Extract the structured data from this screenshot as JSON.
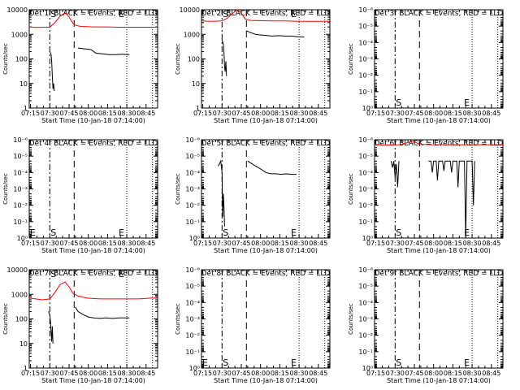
{
  "figure": {
    "title_template": "Det {n}f BLACK = Events, RED = LLD",
    "xlabel": "Start Time (10-Jan-18 07:14:00)",
    "ylabel": "Counts/sec",
    "x_tick_labels": [
      "07:15",
      "07:30",
      "07:45",
      "08:00",
      "08:15",
      "08:30",
      "08:45"
    ],
    "colors": {
      "events": "#000000",
      "lld": "#ff0000",
      "axes": "#000000",
      "background": "#ffffff"
    },
    "marker_labels": {
      "start": "S",
      "end": "E"
    }
  },
  "chart_data": [
    {
      "type": "line",
      "title": "Det 1f BLACK = Events, RED = LLD",
      "xlabel": "Start Time (10-Jan-18 07:14:00)",
      "ylabel": "Counts/sec",
      "x_unit": "minutes since 07:14:00",
      "x_range": [
        0,
        100
      ],
      "y_scale": "log",
      "ylim": [
        1,
        10000
      ],
      "y_tick_labels": [
        "1",
        "10",
        "100",
        "1000",
        "10000"
      ],
      "markers": {
        "S": 16,
        "E": 76
      },
      "vlines": {
        "dashdot": 16,
        "dashed": 35,
        "dotted": [
          76,
          96
        ]
      },
      "series": [
        {
          "name": "Events",
          "color": "#000000",
          "segments": [
            [
              [
                16,
                200
              ],
              [
                17,
                150
              ],
              [
                17.5,
                80
              ],
              [
                18,
                20
              ],
              [
                18.5,
                6
              ],
              [
                19,
                10
              ],
              [
                19.5,
                5
              ]
            ],
            [
              [
                38,
                280
              ],
              [
                40,
                270
              ],
              [
                45,
                250
              ],
              [
                48,
                240
              ],
              [
                52,
                170
              ],
              [
                57,
                160
              ],
              [
                62,
                150
              ],
              [
                67,
                150
              ],
              [
                72,
                155
              ],
              [
                78,
                148
              ]
            ]
          ]
        },
        {
          "name": "LLD",
          "color": "#ff0000",
          "segments": [
            [
              [
                0,
                2000
              ],
              [
                5,
                1900
              ],
              [
                12,
                1950
              ],
              [
                16,
                1950
              ],
              [
                20,
                3000
              ],
              [
                24,
                5500
              ],
              [
                28,
                7500
              ],
              [
                30,
                6000
              ],
              [
                33,
                3500
              ],
              [
                35,
                2400
              ],
              [
                40,
                2100
              ],
              [
                50,
                2000
              ],
              [
                60,
                2000
              ],
              [
                70,
                1950
              ],
              [
                80,
                1950
              ],
              [
                90,
                1950
              ],
              [
                100,
                1950
              ]
            ]
          ]
        }
      ]
    },
    {
      "type": "line",
      "title": "Det 2f BLACK = Events, RED = LLD",
      "xlabel": "Start Time (10-Jan-18 07:14:00)",
      "ylabel": "Counts/sec",
      "x_unit": "minutes since 07:14:00",
      "x_range": [
        0,
        100
      ],
      "y_scale": "log",
      "ylim": [
        1,
        10000
      ],
      "y_tick_labels": [
        "1",
        "10",
        "100",
        "1000",
        "10000"
      ],
      "markers": {
        "S": 16,
        "E": 76
      },
      "vlines": {
        "dashdot": 16,
        "dashed": 35,
        "dotted": [
          76,
          96
        ]
      },
      "series": [
        {
          "name": "Events",
          "color": "#000000",
          "segments": [
            [
              [
                16,
                600
              ],
              [
                17,
                400
              ],
              [
                17.5,
                200
              ],
              [
                18,
                50
              ],
              [
                18.5,
                30
              ],
              [
                19,
                80
              ],
              [
                19.5,
                20
              ]
            ],
            [
              [
                35,
                1400
              ],
              [
                38,
                1200
              ],
              [
                42,
                1000
              ],
              [
                45,
                950
              ],
              [
                50,
                900
              ],
              [
                55,
                850
              ],
              [
                60,
                880
              ],
              [
                65,
                850
              ],
              [
                70,
                850
              ],
              [
                75,
                800
              ],
              [
                80,
                780
              ]
            ]
          ]
        },
        {
          "name": "LLD",
          "color": "#ff0000",
          "segments": [
            [
              [
                0,
                3500
              ],
              [
                8,
                3400
              ],
              [
                16,
                3500
              ],
              [
                20,
                4500
              ],
              [
                24,
                7000
              ],
              [
                28,
                10000
              ],
              [
                31,
                7500
              ],
              [
                34,
                4200
              ],
              [
                38,
                3700
              ],
              [
                45,
                3600
              ],
              [
                55,
                3500
              ],
              [
                65,
                3500
              ],
              [
                75,
                3400
              ],
              [
                85,
                3400
              ],
              [
                100,
                3400
              ]
            ]
          ]
        }
      ]
    },
    {
      "type": "line",
      "title": "Det 3f BLACK = Events, RED = LLD",
      "xlabel": "Start Time (10-Jan-18 07:14:00)",
      "ylabel": "Counts/sec",
      "x_unit": "minutes since 07:14:00",
      "x_range": [
        0,
        100
      ],
      "y_scale": "log",
      "ylim": [
        1,
        1e-06
      ],
      "y_tick_labels": [
        "10⁰",
        "10⁻¹",
        "10⁻²",
        "10⁻³",
        "10⁻⁴",
        "10⁻⁵",
        "10⁻⁶"
      ],
      "markers": {
        "S": 16,
        "E": 76
      },
      "vlines": {
        "dashdot": 16,
        "dashed": 35,
        "dotted": [
          76,
          96
        ]
      },
      "series": []
    },
    {
      "type": "line",
      "title": "Det 4f BLACK = Events, RED = LLD",
      "xlabel": "Start Time (10-Jan-18 07:14:00)",
      "ylabel": "Counts/sec",
      "x_unit": "minutes since 07:14:00",
      "x_range": [
        0,
        100
      ],
      "y_scale": "log",
      "ylim": [
        1,
        1e-06
      ],
      "y_tick_labels": [
        "10⁰",
        "10⁻¹",
        "10⁻²",
        "10⁻³",
        "10⁻⁴",
        "10⁻⁵",
        "10⁻⁶"
      ],
      "markers": {
        "S": 16,
        "E": 76
      },
      "vlines": {
        "dashdot": 16,
        "dashed": 35,
        "dotted": [
          76,
          96
        ]
      },
      "series": []
    },
    {
      "type": "line",
      "title": "Det 5f BLACK = Events, RED = LLD",
      "xlabel": "Start Time (10-Jan-18 07:14:00)",
      "ylabel": "Counts/sec",
      "x_unit": "minutes since 07:14:00",
      "x_range": [
        0,
        100
      ],
      "y_scale": "log",
      "ylim": [
        1,
        1e-06
      ],
      "y_tick_labels": [
        "10⁰",
        "10⁻¹",
        "10⁻²",
        "10⁻³",
        "10⁻⁴",
        "10⁻⁵",
        "10⁻⁶"
      ],
      "markers": {
        "S": 16,
        "E": 76
      },
      "vlines": {
        "dashdot": 16,
        "dashed": 35,
        "dotted": [
          76,
          96
        ]
      },
      "series": [
        {
          "name": "Events",
          "color": "#000000",
          "segments": [
            [
              [
                13,
                4e-05
              ],
              [
                14,
                3e-05
              ],
              [
                15,
                2e-05
              ],
              [
                16,
                0.0001
              ],
              [
                16.5,
                0.05
              ],
              [
                17,
                0.002
              ],
              [
                17.5,
                0.01
              ],
              [
                18,
                0.2
              ]
            ],
            [
              [
                36,
                2e-05
              ],
              [
                38,
                2.5e-05
              ],
              [
                42,
                4e-05
              ],
              [
                46,
                6e-05
              ],
              [
                50,
                0.0001
              ],
              [
                54,
                0.00012
              ],
              [
                58,
                0.00012
              ],
              [
                62,
                0.00013
              ],
              [
                66,
                0.00012
              ],
              [
                70,
                0.00013
              ],
              [
                74,
                0.00013
              ]
            ]
          ]
        }
      ]
    },
    {
      "type": "line",
      "title": "Det 6f BLACK = Events, RED = LLD",
      "xlabel": "Start Time (10-Jan-18 07:14:00)",
      "ylabel": "Counts/sec",
      "x_unit": "minutes since 07:14:00",
      "x_range": [
        0,
        100
      ],
      "y_scale": "log",
      "ylim": [
        1,
        1e-06
      ],
      "y_tick_labels": [
        "10⁰",
        "10⁻¹",
        "10⁻²",
        "10⁻³",
        "10⁻⁴",
        "10⁻⁵",
        "10⁻⁶"
      ],
      "markers": {
        "S": 16,
        "E": 76
      },
      "vlines": {
        "dashdot": 16,
        "dashed": 35,
        "dotted": [
          76,
          96
        ]
      },
      "series": [
        {
          "name": "Events",
          "color": "#000000",
          "segments": [
            [
              [
                13,
                2e-05
              ],
              [
                14,
                5e-05
              ],
              [
                15,
                2e-05
              ],
              [
                16,
                0.0002
              ],
              [
                17,
                3e-05
              ],
              [
                18,
                0.0008
              ],
              [
                19,
                2e-05
              ]
            ],
            [
              [
                42,
                2e-05
              ],
              [
                44,
                2e-05
              ],
              [
                45,
                0.0001
              ],
              [
                46,
                2e-05
              ],
              [
                48,
                2e-05
              ],
              [
                49,
                0.0003
              ],
              [
                50,
                2e-05
              ],
              [
                53,
                2e-05
              ],
              [
                54,
                8e-05
              ],
              [
                55,
                2e-05
              ],
              [
                59,
                2e-05
              ],
              [
                60,
                0.0001
              ],
              [
                61,
                2e-05
              ],
              [
                64,
                2e-05
              ],
              [
                65,
                0.0008
              ],
              [
                66,
                2e-05
              ],
              [
                70,
                2e-05
              ],
              [
                71,
                0.9
              ],
              [
                72,
                2e-05
              ],
              [
                76,
                2e-05
              ],
              [
                77,
                0.01
              ],
              [
                78,
                2e-05
              ]
            ]
          ]
        },
        {
          "name": "LLD",
          "color": "#ff0000",
          "segments": [
            [
              [
                0,
                2e-06
              ],
              [
                10,
                2.1e-06
              ],
              [
                20,
                2e-06
              ],
              [
                30,
                1.2e-06
              ],
              [
                35,
                1.9e-06
              ],
              [
                45,
                2e-06
              ],
              [
                60,
                2e-06
              ],
              [
                80,
                2e-06
              ],
              [
                100,
                2e-06
              ]
            ]
          ]
        }
      ]
    },
    {
      "type": "line",
      "title": "Det 7f BLACK = Events, RED = LLD",
      "xlabel": "Start Time (10-Jan-18 07:14:00)",
      "ylabel": "Counts/sec",
      "x_unit": "minutes since 07:14:00",
      "x_range": [
        0,
        100
      ],
      "y_scale": "log",
      "ylim": [
        1,
        10000
      ],
      "y_tick_labels": [
        "1",
        "10",
        "100",
        "1000",
        "10000"
      ],
      "markers": {
        "S": 16,
        "E": 76
      },
      "vlines": {
        "dashdot": 16,
        "dashed": 35,
        "dotted": [
          76,
          96
        ]
      },
      "series": [
        {
          "name": "Events",
          "color": "#000000",
          "segments": [
            [
              [
                15,
                200
              ],
              [
                16,
                150
              ],
              [
                16.5,
                80
              ],
              [
                17,
                30
              ],
              [
                17.5,
                12
              ],
              [
                18,
                50
              ],
              [
                18.5,
                10
              ]
            ],
            [
              [
                36,
                300
              ],
              [
                38,
                200
              ],
              [
                42,
                150
              ],
              [
                46,
                120
              ],
              [
                50,
                110
              ],
              [
                55,
                105
              ],
              [
                60,
                110
              ],
              [
                65,
                105
              ],
              [
                70,
                110
              ],
              [
                78,
                110
              ]
            ]
          ]
        },
        {
          "name": "LLD",
          "color": "#ff0000",
          "segments": [
            [
              [
                0,
                700
              ],
              [
                5,
                650
              ],
              [
                10,
                600
              ],
              [
                16,
                650
              ],
              [
                20,
                1200
              ],
              [
                24,
                2500
              ],
              [
                28,
                3200
              ],
              [
                31,
                2000
              ],
              [
                34,
                1100
              ],
              [
                38,
                850
              ],
              [
                45,
                700
              ],
              [
                55,
                650
              ],
              [
                65,
                650
              ],
              [
                75,
                650
              ],
              [
                85,
                650
              ],
              [
                95,
                700
              ],
              [
                100,
                700
              ]
            ]
          ]
        }
      ]
    },
    {
      "type": "line",
      "title": "Det 8f BLACK = Events, RED = LLD",
      "xlabel": "Start Time (10-Jan-18 07:14:00)",
      "ylabel": "Counts/sec",
      "x_unit": "minutes since 07:14:00",
      "x_range": [
        0,
        100
      ],
      "y_scale": "log",
      "ylim": [
        1,
        1e-06
      ],
      "y_tick_labels": [
        "10⁰",
        "10⁻¹",
        "10⁻²",
        "10⁻³",
        "10⁻⁴",
        "10⁻⁵",
        "10⁻⁶"
      ],
      "markers": {
        "S": 16,
        "E": 76
      },
      "vlines": {
        "dashdot": 16,
        "dashed": 35,
        "dotted": [
          76,
          96
        ]
      },
      "series": []
    },
    {
      "type": "line",
      "title": "Det 9f BLACK = Events, RED = LLD",
      "xlabel": "Start Time (10-Jan-18 07:14:00)",
      "ylabel": "Counts/sec",
      "x_unit": "minutes since 07:14:00",
      "x_range": [
        0,
        100
      ],
      "y_scale": "log",
      "ylim": [
        1,
        1e-06
      ],
      "y_tick_labels": [
        "10⁰",
        "10⁻¹",
        "10⁻²",
        "10⁻³",
        "10⁻⁴",
        "10⁻⁵",
        "10⁻⁶"
      ],
      "markers": {
        "S": 16,
        "E": 76
      },
      "vlines": {
        "dashdot": 16,
        "dashed": 35,
        "dotted": [
          76,
          96
        ]
      },
      "series": []
    }
  ]
}
